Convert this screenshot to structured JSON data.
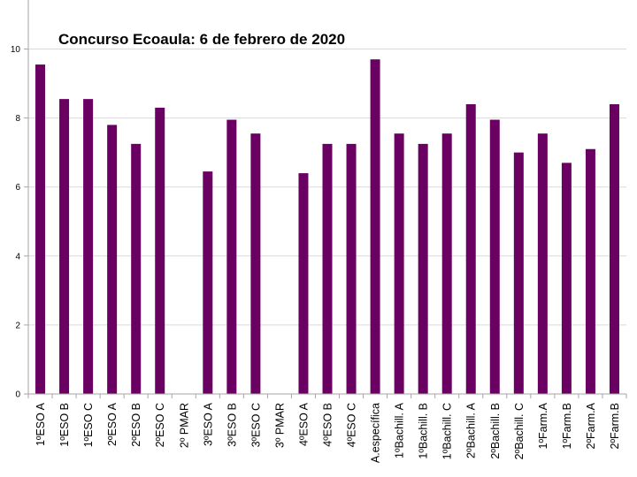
{
  "chart_data": {
    "type": "bar",
    "title": "Concurso Ecoaula: 6 de febrero de 2020",
    "xlabel": "",
    "ylabel": "",
    "ylim": [
      0,
      10
    ],
    "yticks": [
      0,
      2,
      4,
      6,
      8,
      10
    ],
    "grid": true,
    "legend": "none",
    "colors": {
      "bar": "#6b0063",
      "grid": "#d9d9d9",
      "axis": "#a6a6a6"
    },
    "categories": [
      "1ºESO A",
      "1ºESO B",
      "1ºESO C",
      "2ºESO A",
      "2ºESO B",
      "2ºESO C",
      "2º PMAR",
      "3ºESO A",
      "3ºESO B",
      "3ºESO C",
      "3º PMAR",
      "4ºESO A",
      "4ºESO B",
      "4ºESO C",
      "A.específica",
      "1ºBachill. A",
      "1ºBachill. B",
      "1ºBachill. C",
      "2ºBachill. A",
      "2ºBachill. B",
      "2ºBachill. C",
      "1ºFarm.A",
      "1ºFarm.B",
      "2ºFarm.A",
      "2ºFarm.B"
    ],
    "values": [
      9.55,
      8.55,
      8.55,
      7.8,
      7.25,
      8.3,
      0,
      6.45,
      7.95,
      7.55,
      0,
      6.4,
      7.25,
      7.25,
      9.7,
      7.55,
      7.25,
      7.55,
      8.4,
      7.95,
      7.0,
      7.55,
      6.7,
      7.1,
      8.4
    ]
  }
}
